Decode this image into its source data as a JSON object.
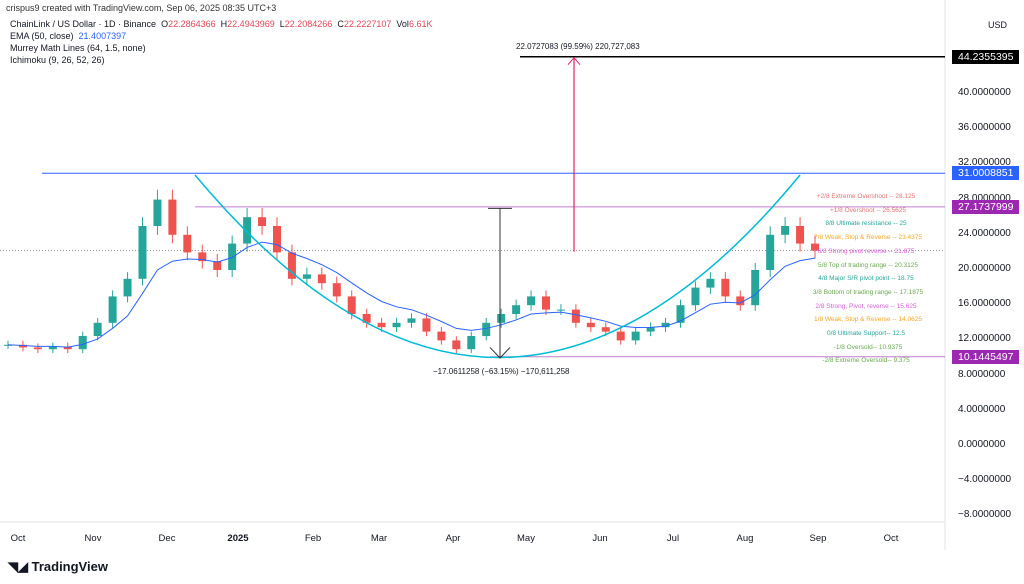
{
  "header": {
    "credit": "crispus9 created with TradingView.com, Sep 06, 2025 08:35 UTC+3",
    "symbol": "ChainLink / US Dollar · 1D · Binance",
    "o_label": "O",
    "o": "22.2864366",
    "h_label": "H",
    "h": "22.4943969",
    "l_label": "L",
    "l": "22.2084266",
    "c_label": "C",
    "c": "22.2227107",
    "vol_label": "Vol",
    "vol": "6.61K",
    "ema": "EMA (50, close)",
    "ema_value": "21.4007397",
    "murrey": "Murrey Math Lines (64, 1.5, none)",
    "ichimoku": "Ichimoku (9, 26, 52, 26)"
  },
  "currency": "USD",
  "logo": "TradingView",
  "chart_data": {
    "type": "candlestick",
    "ylim": [
      -10,
      46
    ],
    "grid": false,
    "y_ticks": [
      "40.0000000",
      "36.0000000",
      "32.0000000",
      "28.0000000",
      "24.0000000",
      "20.0000000",
      "16.0000000",
      "12.0000000",
      "8.0000000",
      "4.0000000",
      "0.0000000",
      "−4.0000000",
      "−8.0000000"
    ],
    "x_ticks": [
      "Oct",
      "Nov",
      "Dec",
      "2025",
      "Feb",
      "Mar",
      "Apr",
      "May",
      "Jun",
      "Jul",
      "Aug",
      "Sep",
      "Oct"
    ],
    "weekly_closes": [
      11.5,
      11.2,
      11.0,
      11.3,
      11.0,
      12.5,
      14,
      17,
      19,
      25,
      28,
      24,
      22,
      21,
      20,
      23,
      26,
      25,
      22,
      19,
      19.5,
      18.5,
      17,
      15,
      14,
      13.5,
      14,
      14.5,
      13,
      12,
      11,
      12.5,
      14,
      15,
      16,
      17,
      15.5,
      15.5,
      14,
      13.5,
      13,
      12,
      13,
      13.5,
      14,
      16,
      18,
      19,
      17,
      16,
      20,
      24,
      25,
      23,
      22.2
    ],
    "price_badges": {
      "target": "44.2355395",
      "resistance": "31.0008851",
      "murrey_top": "27.1737999",
      "murrey_bottom": "10.1445497"
    },
    "levels": {
      "target": 44.2355395,
      "resistance": 31.0008851,
      "murrey_top": 27.1737999,
      "murrey_bottom": 10.1445497
    },
    "annotations": {
      "up_measure": "22.0727083 (99.59%) 220,727,083",
      "down_measure": "−17.0611258 (−63.15%) −170,611,258"
    },
    "murrey_lines": [
      {
        "label": "+2/8 Extreme Overshoot --  28.125",
        "value": 28.125,
        "color": "#e57373"
      },
      {
        "label": "+1/8 Overshoot --  26.5625",
        "value": 26.5625,
        "color": "#e57373"
      },
      {
        "label": "8/8 Ultimate resistance --  25",
        "value": 25,
        "color": "#26a69a"
      },
      {
        "label": "7/8 Weak, Stop & Reverse --  23.4375",
        "value": 23.4375,
        "color": "#f5a623"
      },
      {
        "label": "6/8 Strong pivot reverse --  21.875",
        "value": 21.875,
        "color": "#d35fd3"
      },
      {
        "label": "5/8 Top of trading range --  20.3125",
        "value": 20.3125,
        "color": "#6aa84f"
      },
      {
        "label": "4/8 Major S/R pivot point --  18.75",
        "value": 18.75,
        "color": "#26a69a"
      },
      {
        "label": "3/8 Bottom of trading range --  17.1875",
        "value": 17.1875,
        "color": "#6aa84f"
      },
      {
        "label": "2/8 Strong, Pivot, reverse --  15.625",
        "value": 15.625,
        "color": "#d35fd3"
      },
      {
        "label": "1/8 Weak, Stop & Reverse --  14.0625",
        "value": 14.0625,
        "color": "#f5a623"
      },
      {
        "label": "0/8 Ultimate Support--  12.5",
        "value": 12.5,
        "color": "#26a69a"
      },
      {
        "label": "-1/8 Oversold--  10.9375",
        "value": 10.9375,
        "color": "#6aa84f"
      },
      {
        "label": "-2/8 Extreme Oversold--  9.375",
        "value": 9.375,
        "color": "#6aa84f"
      }
    ],
    "colors": {
      "up": "#26a69a",
      "down": "#ef5350",
      "ema": "#2962ff",
      "arc": "#00bcd4",
      "resistance": "#2962ff",
      "murrey_band": "#9c27b0",
      "measure_up": "#e91e63"
    }
  }
}
